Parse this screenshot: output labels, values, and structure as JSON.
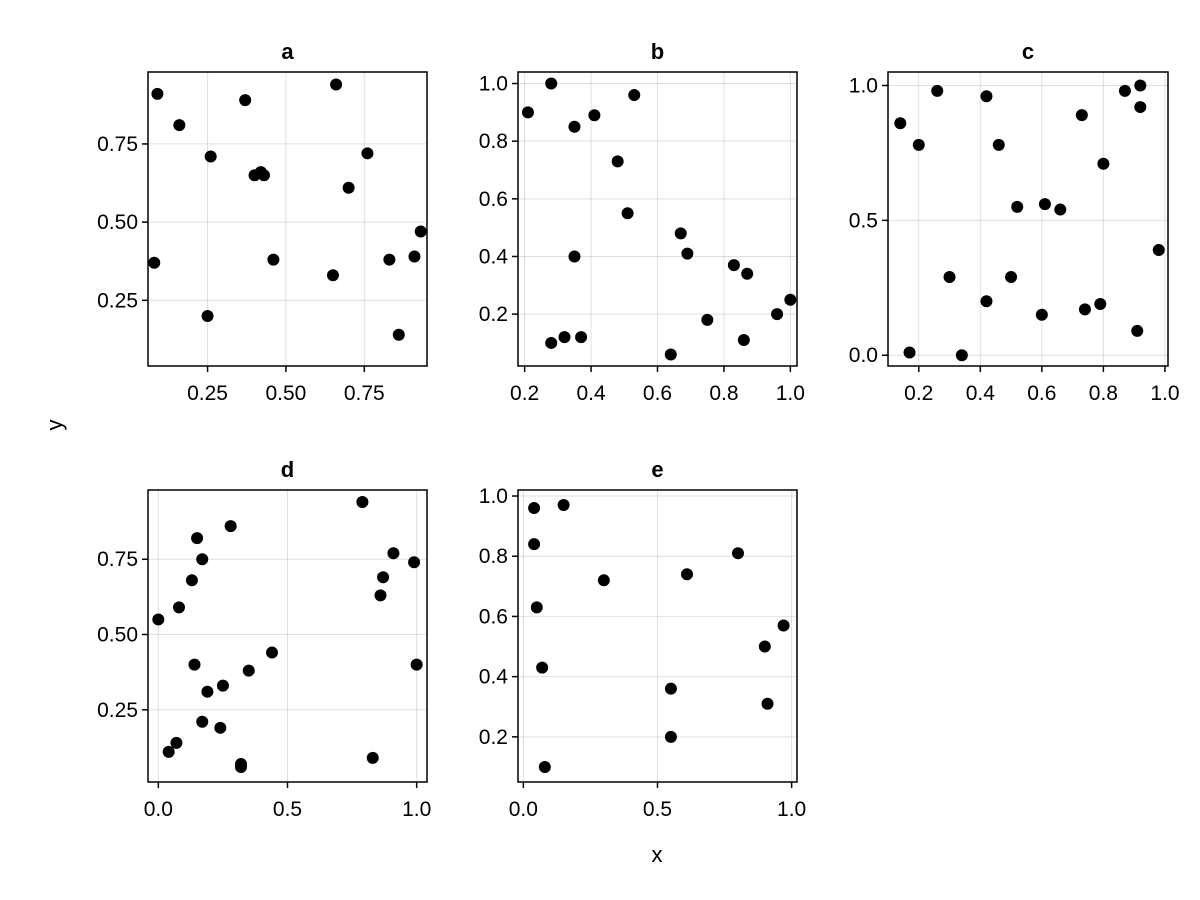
{
  "figure": {
    "xlabel": "x",
    "ylabel": "y"
  },
  "chart_data": [
    {
      "type": "scatter",
      "title": "a",
      "xlim": [
        0.06,
        0.95
      ],
      "ylim": [
        0.04,
        0.98
      ],
      "xticks": [
        0.25,
        0.5,
        0.75
      ],
      "xtick_labels": [
        "0.25",
        "0.50",
        "0.75"
      ],
      "yticks": [
        0.25,
        0.5,
        0.75
      ],
      "ytick_labels": [
        "0.25",
        "0.50",
        "0.75"
      ],
      "grid": true,
      "x": [
        0.09,
        0.08,
        0.16,
        0.26,
        0.25,
        0.37,
        0.4,
        0.42,
        0.43,
        0.46,
        0.65,
        0.66,
        0.7,
        0.76,
        0.83,
        0.86,
        0.91,
        0.93
      ],
      "y": [
        0.91,
        0.37,
        0.81,
        0.71,
        0.2,
        0.89,
        0.65,
        0.66,
        0.65,
        0.38,
        0.33,
        0.94,
        0.61,
        0.72,
        0.38,
        0.14,
        0.39,
        0.47
      ]
    },
    {
      "type": "scatter",
      "title": "b",
      "xlim": [
        0.18,
        1.02
      ],
      "ylim": [
        0.02,
        1.04
      ],
      "xticks": [
        0.2,
        0.4,
        0.6,
        0.8,
        1.0
      ],
      "xtick_labels": [
        "0.2",
        "0.4",
        "0.6",
        "0.8",
        "1.0"
      ],
      "yticks": [
        0.2,
        0.4,
        0.6,
        0.8,
        1.0
      ],
      "ytick_labels": [
        "0.2",
        "0.4",
        "0.6",
        "0.8",
        "1.0"
      ],
      "grid": true,
      "x": [
        0.21,
        0.28,
        0.28,
        0.32,
        0.35,
        0.35,
        0.37,
        0.41,
        0.48,
        0.51,
        0.53,
        0.64,
        0.67,
        0.69,
        0.75,
        0.83,
        0.86,
        0.87,
        0.96,
        1.0
      ],
      "y": [
        0.9,
        1.0,
        0.1,
        0.12,
        0.85,
        0.4,
        0.12,
        0.89,
        0.73,
        0.55,
        0.96,
        0.06,
        0.48,
        0.41,
        0.18,
        0.37,
        0.11,
        0.34,
        0.2,
        0.25
      ]
    },
    {
      "type": "scatter",
      "title": "c",
      "xlim": [
        0.1,
        1.01
      ],
      "ylim": [
        -0.04,
        1.05
      ],
      "xticks": [
        0.2,
        0.4,
        0.6,
        0.8,
        1.0
      ],
      "xtick_labels": [
        "0.2",
        "0.4",
        "0.6",
        "0.8",
        "1.0"
      ],
      "yticks": [
        0.0,
        0.5,
        1.0
      ],
      "ytick_labels": [
        "0.0",
        "0.5",
        "1.0"
      ],
      "grid": true,
      "x": [
        0.14,
        0.17,
        0.2,
        0.26,
        0.3,
        0.34,
        0.42,
        0.42,
        0.46,
        0.5,
        0.52,
        0.6,
        0.61,
        0.66,
        0.73,
        0.74,
        0.79,
        0.8,
        0.87,
        0.91,
        0.92,
        0.92,
        0.98
      ],
      "y": [
        0.86,
        0.01,
        0.78,
        0.98,
        0.29,
        0.0,
        0.96,
        0.2,
        0.78,
        0.29,
        0.55,
        0.15,
        0.56,
        0.54,
        0.89,
        0.17,
        0.19,
        0.71,
        0.98,
        0.09,
        0.92,
        1.0,
        0.39
      ]
    },
    {
      "type": "scatter",
      "title": "d",
      "xlim": [
        -0.04,
        1.04
      ],
      "ylim": [
        0.01,
        0.98
      ],
      "xticks": [
        0.0,
        0.5,
        1.0
      ],
      "xtick_labels": [
        "0.0",
        "0.5",
        "1.0"
      ],
      "yticks": [
        0.25,
        0.5,
        0.75
      ],
      "ytick_labels": [
        "0.25",
        "0.50",
        "0.75"
      ],
      "grid": true,
      "x": [
        0.0,
        0.04,
        0.07,
        0.08,
        0.13,
        0.14,
        0.15,
        0.17,
        0.17,
        0.19,
        0.24,
        0.25,
        0.28,
        0.32,
        0.32,
        0.35,
        0.44,
        0.79,
        0.83,
        0.86,
        0.87,
        0.91,
        0.99,
        1.0
      ],
      "y": [
        0.55,
        0.11,
        0.14,
        0.59,
        0.68,
        0.4,
        0.82,
        0.75,
        0.21,
        0.31,
        0.19,
        0.33,
        0.86,
        0.07,
        0.06,
        0.38,
        0.44,
        0.94,
        0.09,
        0.63,
        0.69,
        0.77,
        0.74,
        0.4
      ]
    },
    {
      "type": "scatter",
      "title": "e",
      "xlim": [
        -0.02,
        1.02
      ],
      "ylim": [
        0.05,
        1.02
      ],
      "xticks": [
        0.0,
        0.5,
        1.0
      ],
      "xtick_labels": [
        "0.0",
        "0.5",
        "1.0"
      ],
      "yticks": [
        0.2,
        0.4,
        0.6,
        0.8,
        1.0
      ],
      "ytick_labels": [
        "0.2",
        "0.4",
        "0.6",
        "0.8",
        "1.0"
      ],
      "grid": true,
      "x": [
        0.04,
        0.04,
        0.05,
        0.07,
        0.08,
        0.15,
        0.3,
        0.55,
        0.55,
        0.61,
        0.8,
        0.9,
        0.91,
        0.97
      ],
      "y": [
        0.96,
        0.84,
        0.63,
        0.43,
        0.1,
        0.97,
        0.72,
        0.36,
        0.2,
        0.74,
        0.81,
        0.5,
        0.31,
        0.57
      ]
    }
  ]
}
